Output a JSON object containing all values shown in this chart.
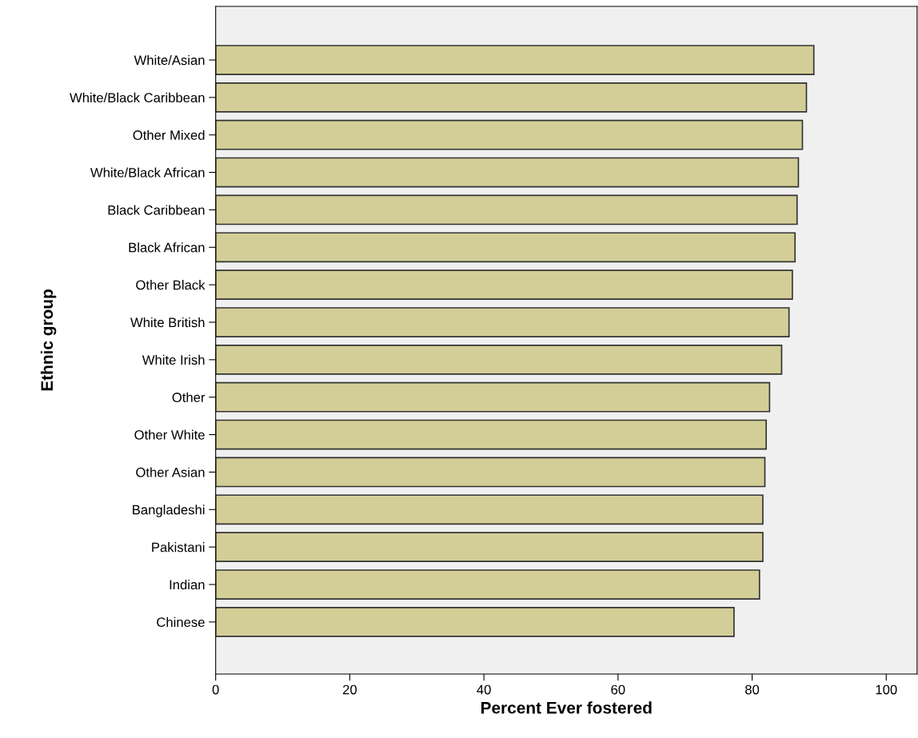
{
  "chart_data": {
    "type": "bar",
    "orientation": "horizontal",
    "xlabel": "Percent Ever fostered",
    "ylabel": "Ethnic group",
    "categories": [
      "White/Asian",
      "White/Black Caribbean",
      "Other Mixed",
      "White/Black African",
      "Black Caribbean",
      "Black African",
      "Other Black",
      "White British",
      "White Irish",
      "Other",
      "Other White",
      "Other Asian",
      "Bangladeshi",
      "Pakistani",
      "Indian",
      "Chinese"
    ],
    "values": [
      89.2,
      88.1,
      87.5,
      86.9,
      86.7,
      86.4,
      86.0,
      85.5,
      84.4,
      82.6,
      82.1,
      81.9,
      81.6,
      81.6,
      81.1,
      77.3
    ],
    "color": "#d3ce97",
    "xlim": [
      0,
      104.6
    ],
    "xticks": [
      0,
      20,
      40,
      60,
      80,
      100
    ],
    "grid": false,
    "legend": false
  }
}
